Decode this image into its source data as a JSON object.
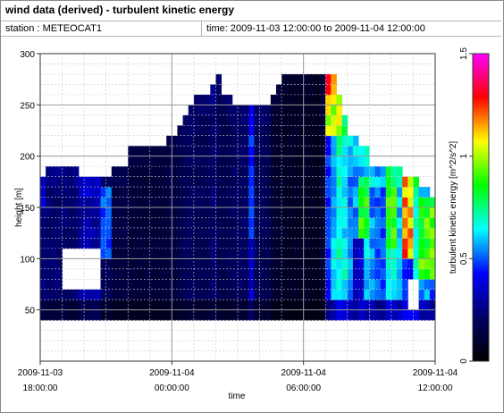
{
  "header": {
    "title": "wind data (derived) - turbulent kinetic energy",
    "station": "station : METEOCAT1",
    "time_range": "time: 2009-11-03 12:00:00 to 2009-11-04 12:00:00"
  },
  "chart_data": {
    "type": "heatmap",
    "title": "wind data (derived) - turbulent kinetic energy",
    "xlabel": "time",
    "ylabel": "height [m]",
    "xlim_hours": [
      -6,
      12
    ],
    "ylim": [
      0,
      300
    ],
    "grid": true,
    "x_ticks": [
      {
        "hour": -6,
        "label": [
          "2009-11-03",
          "18:00:00"
        ]
      },
      {
        "hour": 0,
        "label": [
          "2009-11-04",
          "00:00:00"
        ]
      },
      {
        "hour": 6,
        "label": [
          "2009-11-04",
          "06:00:00"
        ]
      },
      {
        "hour": 12,
        "label": [
          "2009-11-04",
          "12:00:00"
        ]
      }
    ],
    "y_ticks": [
      {
        "value": 50,
        "label": "50"
      },
      {
        "value": 100,
        "label": "100"
      },
      {
        "value": 150,
        "label": "150"
      },
      {
        "value": 200,
        "label": "200"
      },
      {
        "value": 250,
        "label": "250"
      },
      {
        "value": 300,
        "label": "300"
      }
    ],
    "colorbar": {
      "label": "turbulent kinetic energy [m^2/s^2]",
      "min": 0,
      "max": 1.5,
      "ticks": [
        {
          "value": 0,
          "label": "0"
        },
        {
          "value": 0.5,
          "label": "0.5"
        },
        {
          "value": 1,
          "label": "1"
        },
        {
          "value": 1.5,
          "label": "1.5"
        }
      ],
      "colors": [
        "#000000",
        "#000066",
        "#0000ff",
        "#00ffff",
        "#00ff00",
        "#ffff00",
        "#ff0000",
        "#ff00ff"
      ]
    },
    "cell_size": {
      "hours": 0.25,
      "meters": 10
    },
    "columns": [
      {
        "from": -7.0,
        "to": -6.25,
        "bottom": 40,
        "top": 160,
        "v": 0.22
      },
      {
        "from": -6.25,
        "to": -5.75,
        "bottom": 40,
        "top": 180,
        "v": 0.25
      },
      {
        "from": -5.75,
        "to": -4.25,
        "bottom": 40,
        "top": 190,
        "v": 0.22
      },
      {
        "from": -4.25,
        "to": -3.25,
        "bottom": 40,
        "top": 180,
        "v": 0.3
      },
      {
        "from": -3.25,
        "to": -2.75,
        "bottom": 40,
        "top": 180,
        "v": 0.18
      },
      {
        "from": -2.75,
        "to": -2.0,
        "bottom": 40,
        "top": 190,
        "v": 0.14
      },
      {
        "from": -2.0,
        "to": -0.25,
        "bottom": 40,
        "top": 210,
        "v": 0.12
      },
      {
        "from": -0.25,
        "to": 0.25,
        "bottom": 40,
        "top": 220,
        "v": 0.14
      },
      {
        "from": 0.25,
        "to": 0.5,
        "bottom": 40,
        "top": 230,
        "v": 0.16
      },
      {
        "from": 0.5,
        "to": 0.75,
        "bottom": 40,
        "top": 240,
        "v": 0.18
      },
      {
        "from": 0.75,
        "to": 1.0,
        "bottom": 40,
        "top": 250,
        "v": 0.2
      },
      {
        "from": 1.0,
        "to": 1.75,
        "bottom": 40,
        "top": 260,
        "v": 0.18
      },
      {
        "from": 1.75,
        "to": 2.0,
        "bottom": 40,
        "top": 270,
        "v": 0.22
      },
      {
        "from": 2.0,
        "to": 2.25,
        "bottom": 40,
        "top": 280,
        "v": 0.18
      },
      {
        "from": 2.25,
        "to": 2.5,
        "bottom": 40,
        "top": 270,
        "v": 0.16
      },
      {
        "from": 2.5,
        "to": 2.75,
        "bottom": 40,
        "top": 260,
        "v": 0.18
      },
      {
        "from": 2.75,
        "to": 3.5,
        "bottom": 40,
        "top": 250,
        "v": 0.2
      },
      {
        "from": 3.5,
        "to": 3.75,
        "bottom": 40,
        "top": 250,
        "v": 0.35
      },
      {
        "from": 3.75,
        "to": 4.5,
        "bottom": 40,
        "top": 250,
        "v": 0.18
      },
      {
        "from": 4.5,
        "to": 4.75,
        "bottom": 40,
        "top": 260,
        "v": 0.1
      },
      {
        "from": 4.75,
        "to": 5.0,
        "bottom": 40,
        "top": 270,
        "v": 0.1
      },
      {
        "from": 5.0,
        "to": 6.5,
        "bottom": 40,
        "top": 280,
        "v": 0.08
      },
      {
        "from": 6.5,
        "to": 6.75,
        "bottom": 40,
        "top": 280,
        "v": 0.06
      },
      {
        "from": 6.75,
        "to": 7.0,
        "bottom": 40,
        "top": 280,
        "v": 0.1
      },
      {
        "from": 7.0,
        "to": 7.25,
        "bottom": 40,
        "top": 280,
        "v": 0.45
      },
      {
        "from": 7.25,
        "to": 7.5,
        "bottom": 40,
        "top": 280,
        "v": 0.6
      },
      {
        "from": 7.5,
        "to": 7.75,
        "bottom": 40,
        "top": 260,
        "v": 0.7
      },
      {
        "from": 7.75,
        "to": 8.0,
        "bottom": 40,
        "top": 240,
        "v": 0.65
      },
      {
        "from": 8.0,
        "to": 8.5,
        "bottom": 40,
        "top": 220,
        "v": 0.55
      },
      {
        "from": 8.5,
        "to": 9.0,
        "bottom": 40,
        "top": 210,
        "v": 0.6
      },
      {
        "from": 9.0,
        "to": 9.25,
        "bottom": 40,
        "top": 190,
        "v": 0.55
      },
      {
        "from": 9.25,
        "to": 9.75,
        "bottom": 40,
        "top": 190,
        "v": 0.5
      },
      {
        "from": 9.75,
        "to": 10.25,
        "bottom": 40,
        "top": 190,
        "v": 0.65
      },
      {
        "from": 10.25,
        "to": 10.5,
        "bottom": 40,
        "top": 190,
        "v": 0.6
      },
      {
        "from": 10.5,
        "to": 11.25,
        "bottom": 40,
        "top": 180,
        "v": 0.7
      },
      {
        "from": 11.25,
        "to": 11.75,
        "bottom": 40,
        "top": 170,
        "v": 0.55
      },
      {
        "from": 11.75,
        "to": 12.0,
        "bottom": 40,
        "top": 160,
        "v": 0.5
      }
    ],
    "overrides": [
      {
        "from": 7.0,
        "to": 7.75,
        "bottom": 220,
        "top": 280,
        "v": 1.05
      },
      {
        "from": 7.0,
        "to": 7.5,
        "bottom": 260,
        "top": 280,
        "v": 1.2
      },
      {
        "from": 7.5,
        "to": 7.75,
        "bottom": 270,
        "top": 280,
        "v": 1.0
      },
      {
        "from": 10.5,
        "to": 11.0,
        "bottom": 100,
        "top": 180,
        "v": 1.15
      },
      {
        "from": 10.5,
        "to": 11.0,
        "bottom": 60,
        "top": 100,
        "v": 0.45
      },
      {
        "from": 9.75,
        "to": 10.25,
        "bottom": 110,
        "top": 170,
        "v": 0.85
      },
      {
        "from": 8.25,
        "to": 8.75,
        "bottom": 60,
        "top": 120,
        "v": 0.35
      },
      {
        "from": 8.5,
        "to": 9.0,
        "bottom": 120,
        "top": 180,
        "v": 0.85
      },
      {
        "from": 11.25,
        "to": 12.0,
        "bottom": 80,
        "top": 160,
        "v": 0.9
      },
      {
        "from": -6.25,
        "to": -5.75,
        "bottom": 150,
        "top": 180,
        "v": 0.35
      },
      {
        "from": -3.25,
        "to": -2.75,
        "bottom": 100,
        "top": 170,
        "v": 0.5
      },
      {
        "from": 3.5,
        "to": 3.75,
        "bottom": 120,
        "top": 240,
        "v": 0.45
      }
    ],
    "gaps": [
      {
        "from": -7.0,
        "to": -6.25,
        "bottom": 40,
        "top": 110
      },
      {
        "from": -5.0,
        "to": -3.25,
        "bottom": 70,
        "top": 110
      },
      {
        "from": -7.0,
        "to": -6.5,
        "bottom": 110,
        "top": 120
      },
      {
        "from": 2.25,
        "to": 2.5,
        "bottom": 260,
        "top": 280
      },
      {
        "from": 10.75,
        "to": 11.25,
        "bottom": 50,
        "top": 80
      }
    ]
  }
}
